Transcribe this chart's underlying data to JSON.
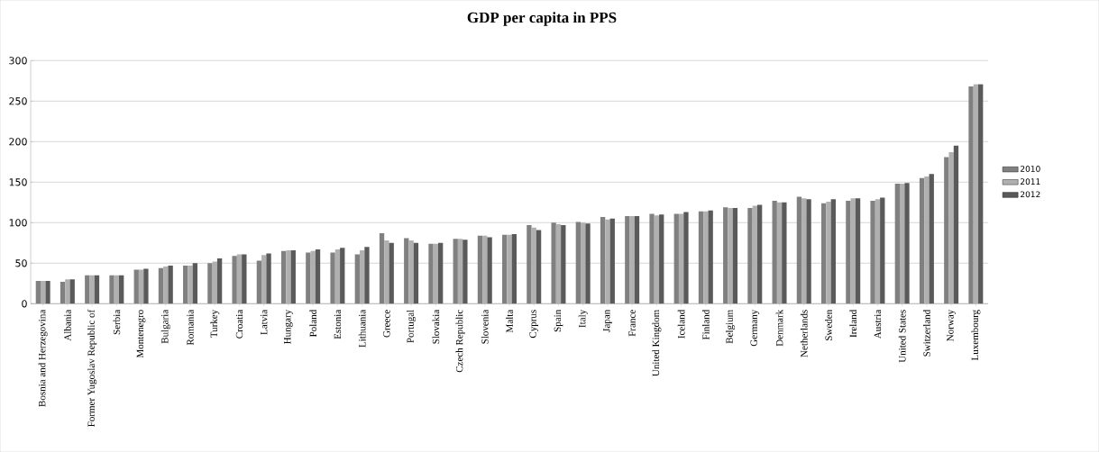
{
  "chart_data": {
    "type": "bar",
    "title": "GDP per capita in PPS",
    "categories": [
      "Bosnia and Herzegovina",
      "Albania",
      "Former Yugoslav Republic of",
      "Serbia",
      "Montenegro",
      "Bulgaria",
      "Romania",
      "Turkey",
      "Croatia",
      "Latvia",
      "Hungary",
      "Poland",
      "Estonia",
      "Lithuania",
      "Greece",
      "Portugal",
      "Slovakia",
      "Czech Republic",
      "Slovenia",
      "Malta",
      "Cyprus",
      "Spain",
      "Italy",
      "Japan",
      "France",
      "United Kingdom",
      "Iceland",
      "Finland",
      "Belgium",
      "Germany",
      "Denmark",
      "Netherlands",
      "Sweden",
      "Ireland",
      "Austria",
      "United States",
      "Switzerland",
      "Norway",
      "Luxembourg"
    ],
    "series": [
      {
        "name": "2010",
        "color": "#808080",
        "values": [
          28,
          27,
          35,
          35,
          42,
          44,
          47,
          50,
          59,
          53,
          65,
          63,
          63,
          61,
          87,
          81,
          74,
          80,
          84,
          85,
          97,
          100,
          101,
          107,
          108,
          111,
          111,
          114,
          119,
          118,
          127,
          132,
          124,
          127,
          127,
          148,
          155,
          181,
          268
        ]
      },
      {
        "name": "2011",
        "color": "#b0b0b0",
        "values": [
          28,
          30,
          35,
          35,
          42,
          46,
          47,
          52,
          61,
          60,
          66,
          65,
          67,
          66,
          78,
          78,
          74,
          80,
          84,
          85,
          94,
          98,
          100,
          104,
          108,
          109,
          111,
          114,
          118,
          121,
          125,
          130,
          126,
          130,
          129,
          148,
          157,
          187,
          271
        ]
      },
      {
        "name": "2012",
        "color": "#5a5a5a",
        "values": [
          28,
          30,
          35,
          35,
          43,
          47,
          50,
          56,
          61,
          62,
          66,
          67,
          69,
          70,
          75,
          75,
          75,
          79,
          82,
          86,
          91,
          97,
          99,
          105,
          108,
          110,
          113,
          115,
          118,
          122,
          125,
          129,
          129,
          130,
          131,
          149,
          160,
          195,
          271
        ]
      }
    ],
    "ylim": [
      0,
      300
    ],
    "yticks": [
      0,
      50,
      100,
      150,
      200,
      250,
      300
    ],
    "grid": "y",
    "legend": "right"
  }
}
